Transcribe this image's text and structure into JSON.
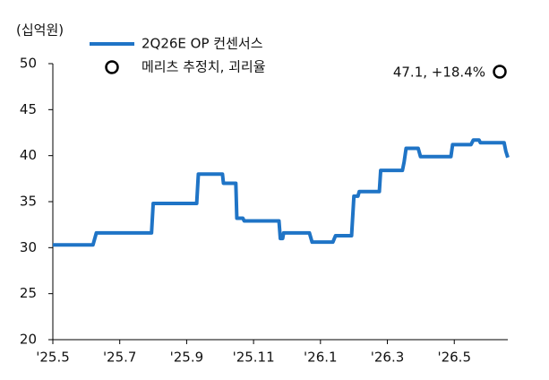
{
  "chart_data": {
    "type": "line",
    "y_label": "(십억원)",
    "xlim": [
      0,
      13.6
    ],
    "xticks": [
      {
        "value": 0,
        "label": "'25.5"
      },
      {
        "value": 2,
        "label": "'25.7"
      },
      {
        "value": 4,
        "label": "'25.9"
      },
      {
        "value": 6,
        "label": "'25.11"
      },
      {
        "value": 8,
        "label": "'26.1"
      },
      {
        "value": 10,
        "label": "'26.3"
      },
      {
        "value": 12,
        "label": "'26.5"
      }
    ],
    "ylim": [
      20,
      50
    ],
    "yticks": [
      20,
      25,
      30,
      35,
      40,
      45,
      50
    ],
    "series": [
      {
        "name": "2Q26E OP 컨센서스",
        "color": "#1f74c6",
        "x": [
          0,
          1.2,
          1.3,
          2.95,
          3.0,
          4.3,
          4.35,
          5.07,
          5.1,
          5.47,
          5.5,
          5.68,
          5.72,
          6.76,
          6.8,
          6.87,
          6.9,
          7.67,
          7.75,
          8.37,
          8.45,
          8.93,
          9.0,
          9.12,
          9.16,
          9.76,
          9.8,
          10.45,
          10.5,
          10.56,
          10.62,
          10.92,
          10.99,
          11.9,
          11.95,
          12.5,
          12.57,
          12.74,
          12.78,
          13.49,
          13.54,
          13.6
        ],
        "values": [
          30.3,
          30.3,
          31.6,
          31.6,
          34.8,
          34.8,
          38.0,
          38.0,
          37.0,
          37.0,
          33.2,
          33.2,
          32.9,
          32.9,
          31.0,
          31.0,
          31.6,
          31.6,
          30.6,
          30.6,
          31.3,
          31.3,
          35.6,
          35.6,
          36.1,
          36.1,
          38.4,
          38.4,
          39.3,
          40.8,
          40.8,
          40.8,
          39.9,
          39.9,
          41.2,
          41.2,
          41.7,
          41.7,
          41.4,
          41.4,
          40.5,
          39.8
        ]
      }
    ],
    "estimate_label": "메리츠 추정치, 괴리율",
    "annotation": "47.1, +18.4%"
  }
}
